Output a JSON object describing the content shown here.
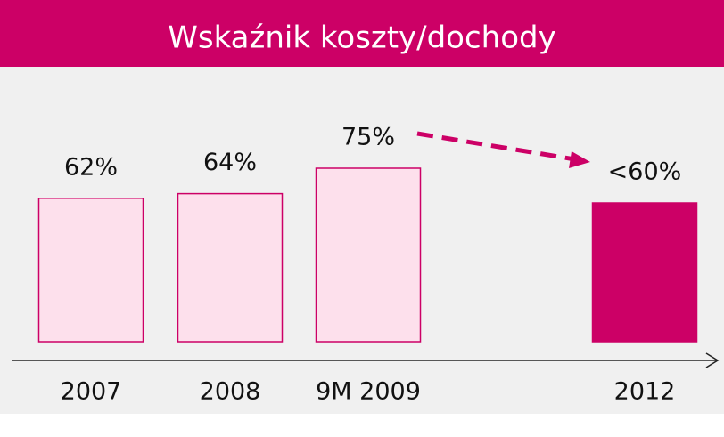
{
  "chart_data": {
    "type": "bar",
    "title": "Wskaźnik koszty/dochody",
    "categories": [
      "2007",
      "2008",
      "9M 2009",
      "2012"
    ],
    "values": [
      62,
      64,
      75,
      60
    ],
    "value_labels": [
      "62%",
      "64%",
      "75%",
      "<60%"
    ],
    "colors": [
      "#fde0ec",
      "#fde0ec",
      "#fde0ec",
      "#cc0066"
    ],
    "edge_color": "#cc0066"
  }
}
